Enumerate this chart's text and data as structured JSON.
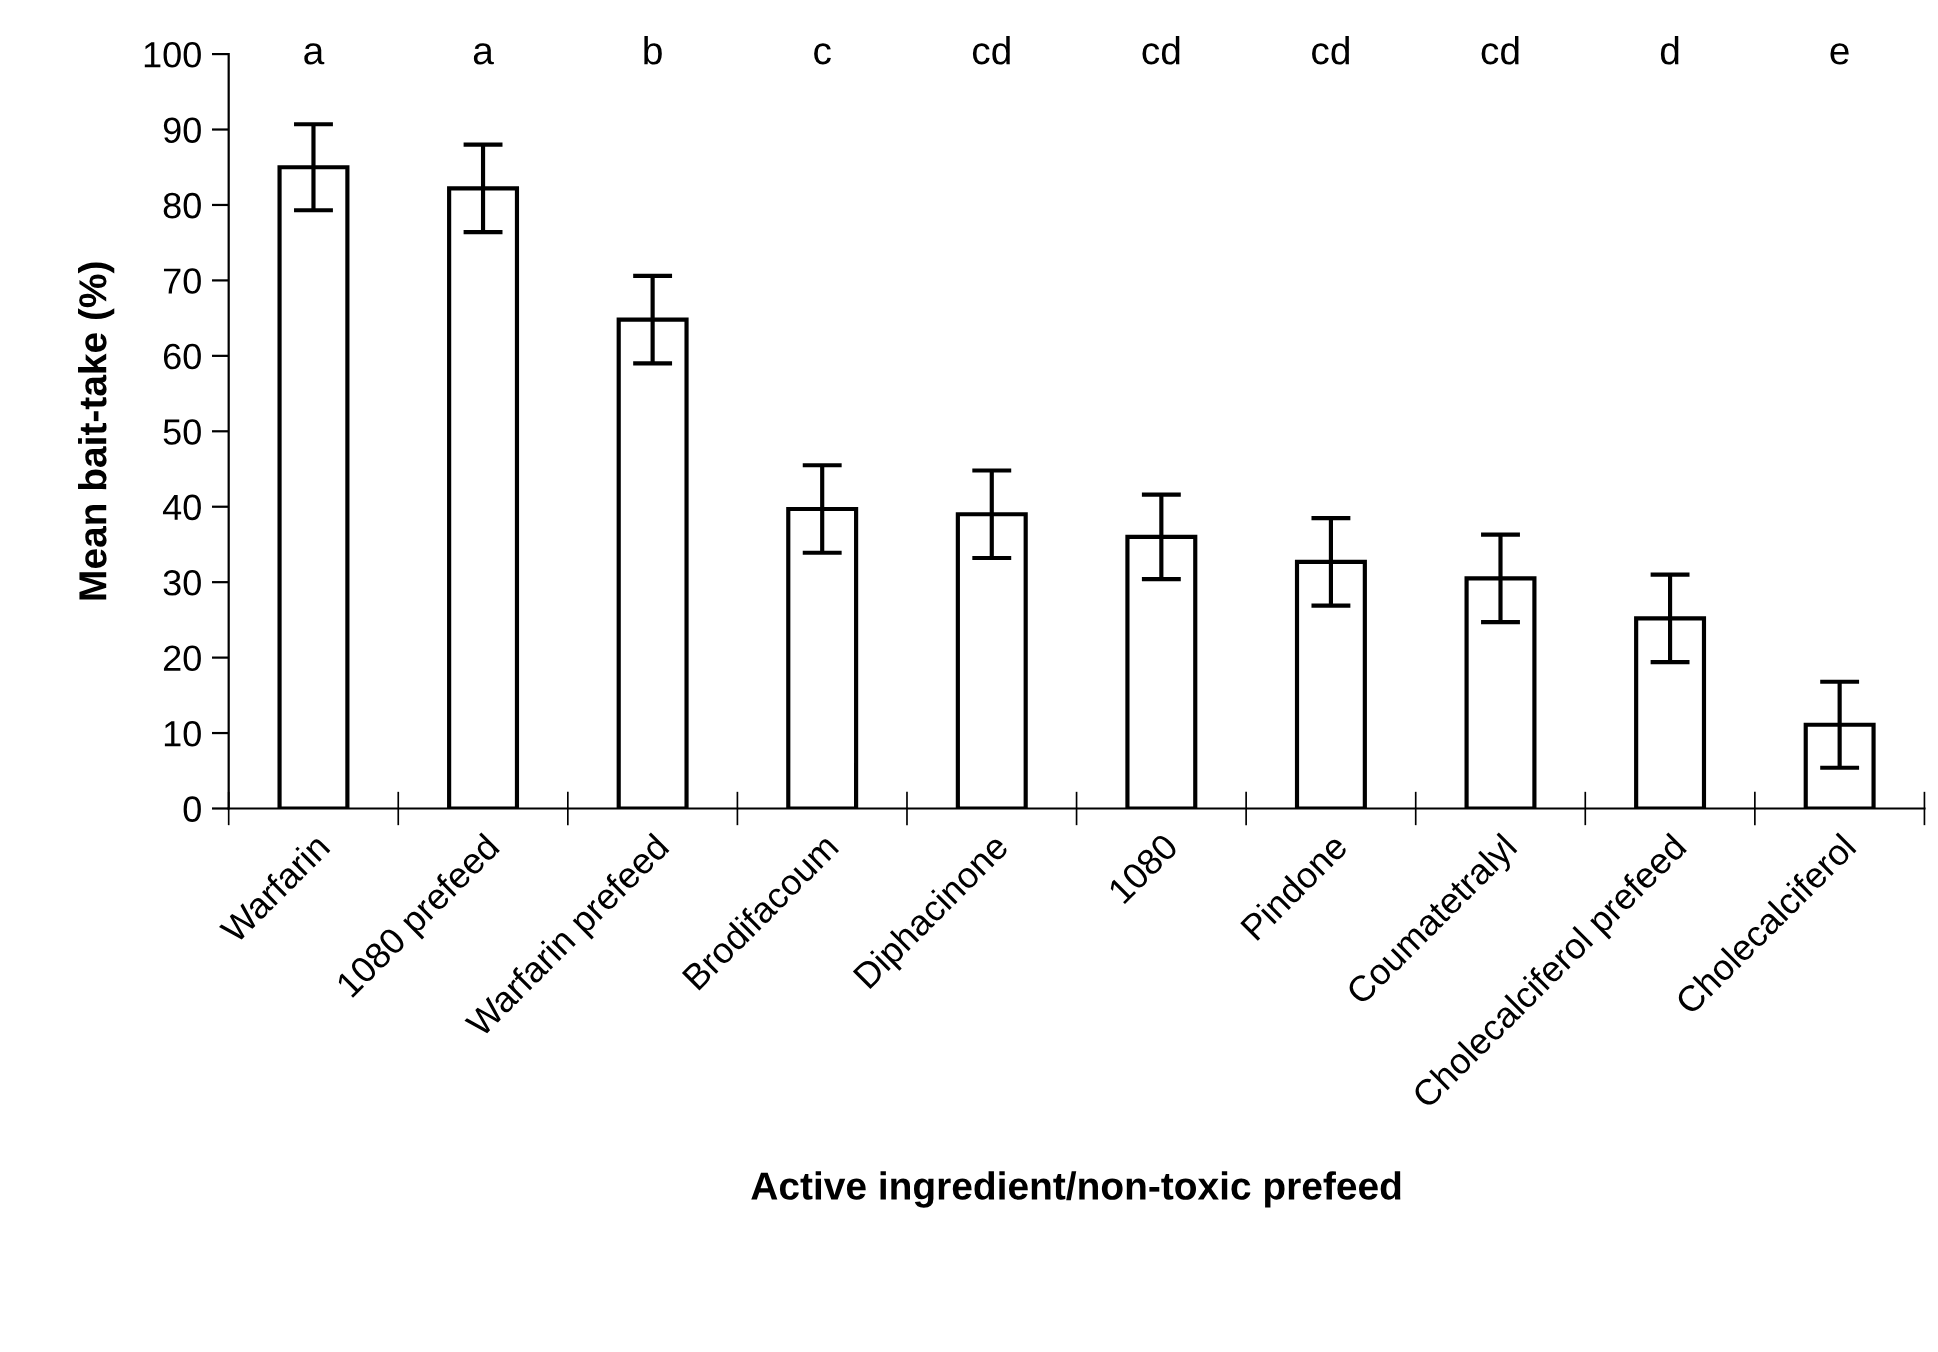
{
  "chart_data": {
    "type": "bar",
    "xlabel": "Active ingredient/non-toxic prefeed",
    "ylabel": "Mean bait-take (%)",
    "categories": [
      "Warfarin",
      "1080 prefeed",
      "Warfarin prefeed",
      "Brodifacoum",
      "Diphacinone",
      "1080",
      "Pindone",
      "Coumatetralyl",
      "Cholecalciferol prefeed",
      "Cholecalciferol"
    ],
    "series": [
      {
        "color": "#ffffff",
        "values": [
          85,
          82.2,
          64.8,
          39.7,
          39,
          36,
          32.7,
          30.5,
          25.2,
          11.1
        ],
        "errors": [
          5.7,
          5.8,
          5.8,
          5.8,
          5.8,
          5.6,
          5.8,
          5.8,
          5.8,
          5.7
        ]
      }
    ],
    "annotations": [
      "a",
      "a",
      "b",
      "c",
      "cd",
      "cd",
      "cd",
      "cd",
      "d",
      "e"
    ],
    "ylim": [
      0,
      100
    ],
    "yticks": [
      0,
      10,
      20,
      30,
      40,
      50,
      60,
      70,
      80,
      90,
      100
    ],
    "grid": false,
    "legend": false
  }
}
